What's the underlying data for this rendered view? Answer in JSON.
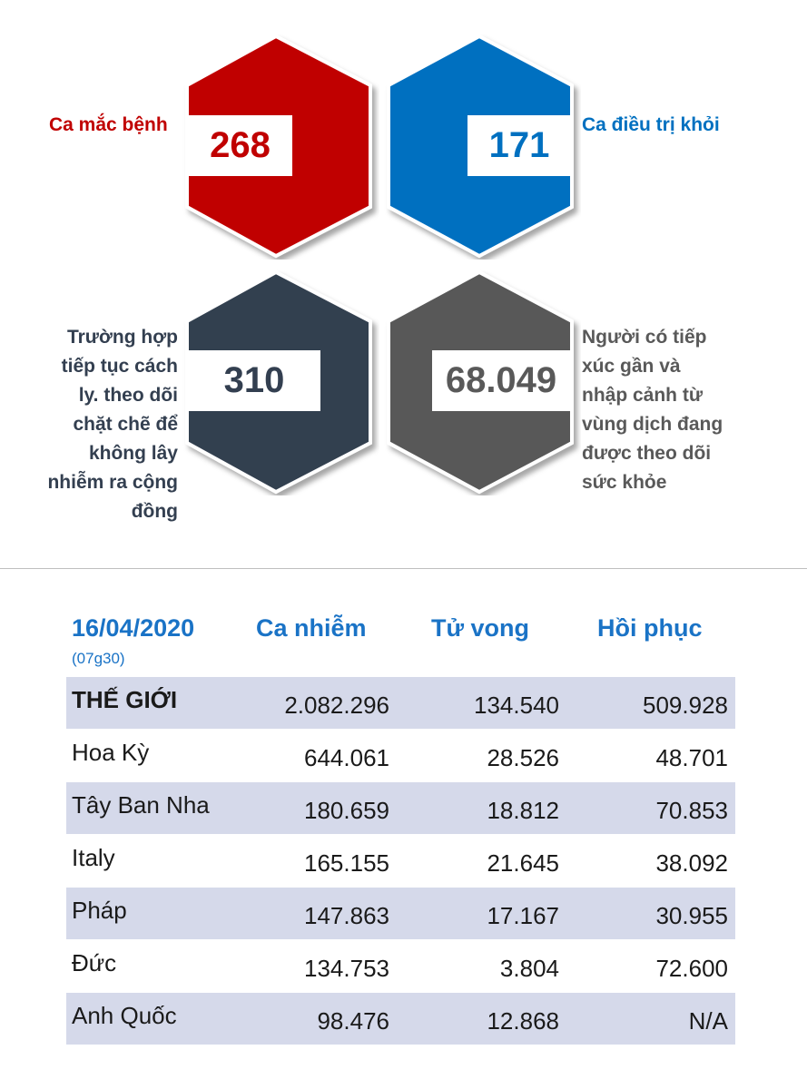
{
  "stats": {
    "infected": {
      "value": "268",
      "label": "Ca mắc bệnh",
      "color": "#c00000"
    },
    "recovered": {
      "value": "171",
      "label": "Ca điều trị khỏi",
      "color": "#0070c0"
    },
    "isolation": {
      "value": "310",
      "label_lines": [
        "Trường hợp",
        "tiếp tục cách",
        "ly. theo dõi",
        "chặt chẽ để",
        "không lây",
        "nhiễm ra cộng",
        "đồng"
      ],
      "color": "#333f50"
    },
    "monitored": {
      "value": "68.049",
      "label_lines": [
        "Người có tiếp",
        "xúc gần và",
        "nhập cảnh từ",
        "vùng dịch đang",
        "được theo dõi",
        "sức khỏe"
      ],
      "color": "#595959"
    }
  },
  "table": {
    "date": "16/04/2020",
    "time": "(07g30)",
    "columns": [
      "Ca nhiễm",
      "Tử vong",
      "Hồi phục"
    ],
    "rows": [
      {
        "name": "THẾ GIỚI",
        "infected": "2.082.296",
        "deaths": "134.540",
        "recovered": "509.928"
      },
      {
        "name": "Hoa Kỳ",
        "infected": "644.061",
        "deaths": "28.526",
        "recovered": "48.701"
      },
      {
        "name": "Tây Ban Nha",
        "infected": "180.659",
        "deaths": "18.812",
        "recovered": "70.853"
      },
      {
        "name": "Italy",
        "infected": "165.155",
        "deaths": "21.645",
        "recovered": "38.092"
      },
      {
        "name": "Pháp",
        "infected": "147.863",
        "deaths": "17.167",
        "recovered": "30.955"
      },
      {
        "name": "Đức",
        "infected": "134.753",
        "deaths": "3.804",
        "recovered": "72.600"
      },
      {
        "name": "Anh Quốc",
        "infected": "98.476",
        "deaths": "12.868",
        "recovered": "N/A"
      }
    ]
  }
}
